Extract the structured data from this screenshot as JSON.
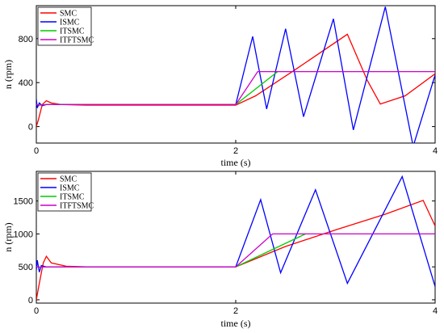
{
  "chart_data": [
    {
      "type": "line",
      "xlabel": "time (s)",
      "ylabel": "n (rpm)",
      "xlim": [
        0,
        4
      ],
      "ylim": [
        -150,
        1100
      ],
      "xticks": [
        0,
        2,
        4
      ],
      "yticks": [
        0,
        400,
        800
      ],
      "legend_position": "top-left",
      "series": [
        {
          "name": "SMC",
          "color": "#ff0000",
          "x": [
            0,
            0.02,
            0.06,
            0.1,
            0.15,
            0.25,
            0.5,
            1,
            1.5,
            2,
            2.2,
            2.6,
            3.12,
            3.32,
            3.45,
            3.7,
            4
          ],
          "y": [
            0,
            60,
            200,
            235,
            215,
            200,
            195,
            195,
            195,
            195,
            280,
            520,
            840,
            420,
            205,
            280,
            480
          ]
        },
        {
          "name": "ISMC",
          "color": "#0000ff",
          "x": [
            0,
            0.01,
            0.03,
            0.06,
            0.1,
            0.5,
            1,
            1.5,
            2,
            2.17,
            2.31,
            2.5,
            2.68,
            2.98,
            3.18,
            3.5,
            3.78,
            4
          ],
          "y": [
            250,
            170,
            215,
            190,
            200,
            200,
            200,
            200,
            200,
            820,
            160,
            890,
            90,
            980,
            -30,
            1090,
            -180,
            470
          ]
        },
        {
          "name": "ITSMC",
          "color": "#00cc00",
          "x": [
            0,
            0.03,
            0.1,
            0.5,
            1,
            1.5,
            2,
            2.42
          ],
          "y": [
            200,
            195,
            200,
            200,
            200,
            200,
            200,
            500
          ]
        },
        {
          "name": "ITFTSMC",
          "color": "#cc00cc",
          "x": [
            0,
            0.03,
            0.1,
            0.5,
            1,
            1.5,
            2,
            2.22,
            4
          ],
          "y": [
            200,
            195,
            200,
            200,
            200,
            200,
            200,
            500,
            500
          ]
        }
      ]
    },
    {
      "type": "line",
      "xlabel": "time (s)",
      "ylabel": "n (rpm)",
      "xlim": [
        0,
        4
      ],
      "ylim": [
        -50,
        1950
      ],
      "xticks": [
        0,
        2,
        4
      ],
      "yticks": [
        0,
        500,
        1000,
        1500
      ],
      "legend_position": "top-left",
      "series": [
        {
          "name": "SMC",
          "color": "#ff0000",
          "x": [
            0,
            0.03,
            0.07,
            0.1,
            0.15,
            0.3,
            0.5,
            1,
            1.5,
            2,
            2.5,
            3,
            3.5,
            3.88,
            4
          ],
          "y": [
            0,
            250,
            560,
            660,
            560,
            510,
            500,
            500,
            500,
            500,
            810,
            1060,
            1300,
            1510,
            1120
          ]
        },
        {
          "name": "ISMC",
          "color": "#0000ff",
          "x": [
            0,
            0.01,
            0.03,
            0.05,
            0.1,
            0.5,
            1,
            1.5,
            2,
            2.25,
            2.45,
            2.8,
            3.12,
            3.67,
            4
          ],
          "y": [
            450,
            600,
            420,
            520,
            500,
            500,
            500,
            500,
            500,
            1520,
            410,
            1670,
            250,
            1870,
            200
          ]
        },
        {
          "name": "ITSMC",
          "color": "#00cc00",
          "x": [
            0,
            0.03,
            0.1,
            0.5,
            1,
            1.5,
            2,
            2.7
          ],
          "y": [
            500,
            495,
            500,
            500,
            500,
            500,
            500,
            1000
          ]
        },
        {
          "name": "ITFTSMC",
          "color": "#cc00cc",
          "x": [
            0,
            0.03,
            0.1,
            0.5,
            1,
            1.5,
            2,
            2.37,
            4
          ],
          "y": [
            500,
            495,
            500,
            500,
            500,
            500,
            500,
            1000,
            1000
          ]
        }
      ]
    }
  ]
}
